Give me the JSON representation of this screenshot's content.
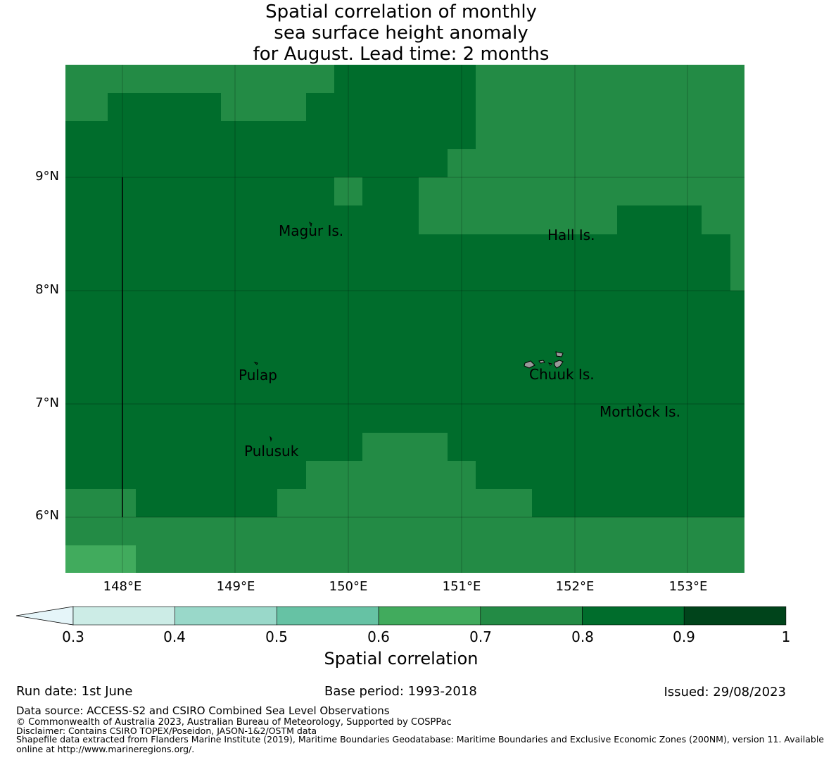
{
  "title": {
    "line1": "Spatial correlation of monthly",
    "line2": "sea surface height anomaly",
    "line3": "for August. Lead time: 2 months"
  },
  "map": {
    "lat_labels": [
      "9°N",
      "8°N",
      "7°N",
      "6°N"
    ],
    "lon_labels": [
      "148°E",
      "149°E",
      "150°E",
      "151°E",
      "152°E",
      "153°E"
    ],
    "places": [
      {
        "name": "Magur Is."
      },
      {
        "name": "Hall Is."
      },
      {
        "name": "Pulap"
      },
      {
        "name": "Chuuk Is."
      },
      {
        "name": "Mortlock Is."
      },
      {
        "name": "Pulusuk"
      }
    ],
    "colors": {
      "c07_08": "#238b45",
      "c08_09": "#006d2c",
      "c06_07": "#41ab5d",
      "island": "#999999"
    }
  },
  "colorbar": {
    "ticks": [
      "0.3",
      "0.4",
      "0.5",
      "0.6",
      "0.7",
      "0.8",
      "0.9",
      "1"
    ],
    "colors": [
      "#e5f5f9",
      "#ccece6",
      "#99d8c9",
      "#66c2a4",
      "#41ab5d",
      "#238b45",
      "#006d2c",
      "#00441b"
    ],
    "label": "Spatial correlation"
  },
  "footer": {
    "run_date": "Run date: 1st June",
    "base_period": "Base period: 1993-2018",
    "issued": "Issued: 29/08/2023",
    "data_source": "Data source: ACCESS-S2 and CSIRO Combined Sea Level Observations",
    "copyright": "© Commonwealth of Australia 2023, Australian Bureau of Meteorology, Supported by COSPPac",
    "disclaimer": "Disclaimer: Contains CSIRO TOPEX/Poseidon, JASON-1&2/OSTM data",
    "shapefile_line1": "Shapefile data extracted from Flanders Marine Institute (2019), Maritime Boundaries Geodatabase: Maritime Boundaries and Exclusive Economic Zones (200NM), version 11. Available",
    "shapefile_line2": "online at http://www.marineregions.org/."
  }
}
